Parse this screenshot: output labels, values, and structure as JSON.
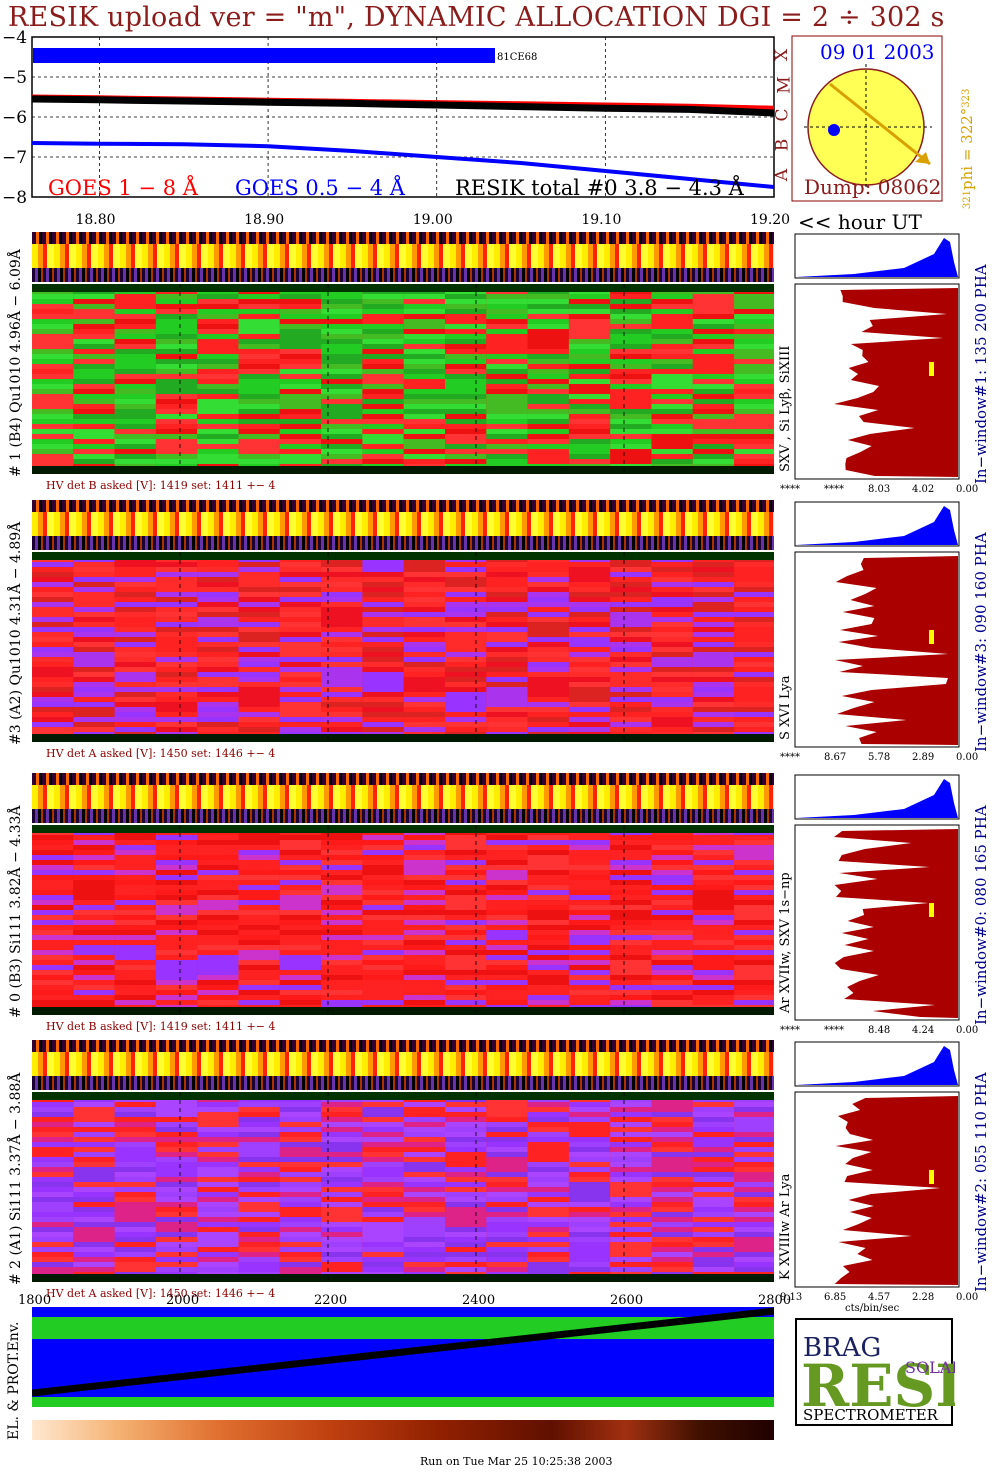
{
  "header": {
    "title": "RESIK upload ver = \"m\", DYNAMIC ALLOCATION  DGI =   2 ÷ 302 s"
  },
  "goes_panel": {
    "y_ticks": [
      "−4",
      "−5",
      "−6",
      "−7",
      "−8"
    ],
    "x_ticks": [
      "18.80",
      "18.90",
      "19.00",
      "19.10",
      "19.20"
    ],
    "x_unit": "<< hour UT",
    "class_letters": [
      "A",
      "B",
      "C",
      "M",
      "X"
    ],
    "annotation": "81CE68",
    "legend_goes18": "GOES 1 − 8 Å",
    "legend_goes054": "GOES 0.5 − 4 Å",
    "legend_resik": "RESIK total #0  3.8 − 4.3 Å",
    "colors": {
      "goes18": "#ff0000",
      "goes054": "#0000ff",
      "resik": "#000000"
    }
  },
  "orbit_panel": {
    "date": "09 01 2003",
    "dump": "Dump: 08062",
    "phi_label": "phi = 322°",
    "phi_top": "323",
    "phi_bottom": "321"
  },
  "detectors": [
    {
      "id": "d1",
      "side_label": "# 1 (B4) Qu1010 4.96Å − 6.09Å",
      "line_label": "SXV , Si Lyβ, SiXIII",
      "window_label": "In−window#1:  135 200 PHA",
      "hv": "HV det B asked [V]:  1419 set:  1411  +−    4",
      "pha_ticks": [
        "****",
        "****",
        "8.03",
        "4.02",
        "0.00"
      ]
    },
    {
      "id": "d3",
      "side_label": "#3 (A2) Qu1010  4.31Å − 4.89Å",
      "line_label": "S XVI Lya",
      "window_label": "In−window#3:  090 160 PHA",
      "hv": "HV det A asked [V]:  1450 set:  1446  +−    4",
      "pha_ticks": [
        "****",
        "8.67",
        "5.78",
        "2.89",
        "0.00"
      ]
    },
    {
      "id": "d0",
      "side_label": "# 0 (B3) Si111  3.82Å − 4.33Å",
      "line_label": "Ar XVIIw,  SXV 1s−np",
      "window_label": "In−window#0:  080 165 PHA",
      "hv": "HV det B asked [V]:  1419 set:  1411  +−    4",
      "pha_ticks": [
        "****",
        "****",
        "8.48",
        "4.24",
        "0.00"
      ]
    },
    {
      "id": "d2",
      "side_label": "# 2 (A1) Si111  3.37Å − 3.88Å",
      "line_label": "K XVIIIw  Ar Lya",
      "window_label": "In−window#2:  055 110 PHA",
      "hv": "HV det A asked [V]:  1450 set:  1446  +−    4",
      "pha_ticks": [
        "9.13",
        "6.85",
        "4.57",
        "2.28",
        "0.00"
      ]
    }
  ],
  "pha_unit": "cts/bin/sec",
  "env_panel": {
    "x_ticks": [
      "1800",
      "2000",
      "2200",
      "2400",
      "2600",
      "2800"
    ],
    "label": "EL. & PROT.Env."
  },
  "logo": {
    "letters_top": "BRAG",
    "main": "RESIK",
    "solar": "SOLAR",
    "bottom": "SPECTROMETER"
  },
  "footer": "Run on Tue Mar 25 10:25:38 2003",
  "chart_data": {
    "type": "line",
    "x": [
      18.76,
      18.8,
      18.85,
      18.9,
      18.95,
      19.0,
      19.05,
      19.1,
      19.15,
      19.2
    ],
    "ylim": [
      -8,
      -4
    ],
    "xlim": [
      18.76,
      19.2
    ],
    "series": [
      {
        "name": "GOES 1 − 8 Å",
        "values": [
          -5.5,
          -5.52,
          -5.55,
          -5.58,
          -5.61,
          -5.64,
          -5.67,
          -5.7,
          -5.73,
          -5.78
        ]
      },
      {
        "name": "RESIK total #0  3.8 − 4.3 Å",
        "values": [
          -5.55,
          -5.57,
          -5.6,
          -5.63,
          -5.66,
          -5.7,
          -5.74,
          -5.78,
          -5.81,
          -5.9
        ]
      },
      {
        "name": "GOES 0.5 − 4 Å",
        "values": [
          -6.65,
          -6.67,
          -6.68,
          -6.73,
          -6.85,
          -7.0,
          -7.15,
          -7.35,
          -7.55,
          -7.75
        ]
      }
    ]
  }
}
